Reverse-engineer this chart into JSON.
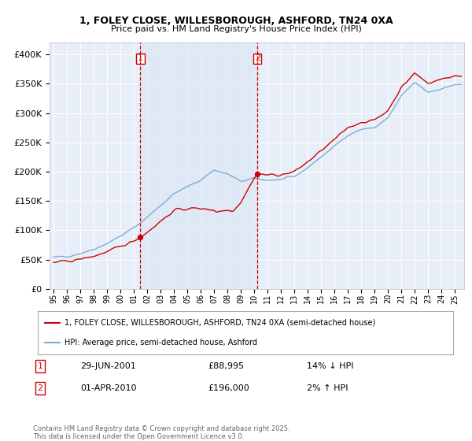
{
  "title_line1": "1, FOLEY CLOSE, WILLESBOROUGH, ASHFORD, TN24 0XA",
  "title_line2": "Price paid vs. HM Land Registry's House Price Index (HPI)",
  "legend_label1": "1, FOLEY CLOSE, WILLESBOROUGH, ASHFORD, TN24 0XA (semi-detached house)",
  "legend_label2": "HPI: Average price, semi-detached house, Ashford",
  "purchase1_label": "1",
  "purchase1_date": "29-JUN-2001",
  "purchase1_price": "£88,995",
  "purchase1_hpi": "14% ↓ HPI",
  "purchase1_year": 2001.49,
  "purchase1_value": 88995,
  "purchase2_label": "2",
  "purchase2_date": "01-APR-2010",
  "purchase2_price": "£196,000",
  "purchase2_hpi": "2% ↑ HPI",
  "purchase2_year": 2010.25,
  "purchase2_value": 196000,
  "footer": "Contains HM Land Registry data © Crown copyright and database right 2025.\nThis data is licensed under the Open Government Licence v3.0.",
  "color_red": "#cc0000",
  "color_blue": "#7aadd4",
  "color_vline": "#cc0000",
  "color_shade": "#dce8f5",
  "bg_color": "#e8eef8",
  "ylim_min": 0,
  "ylim_max": 420000,
  "year_start": 1995,
  "year_end": 2025
}
